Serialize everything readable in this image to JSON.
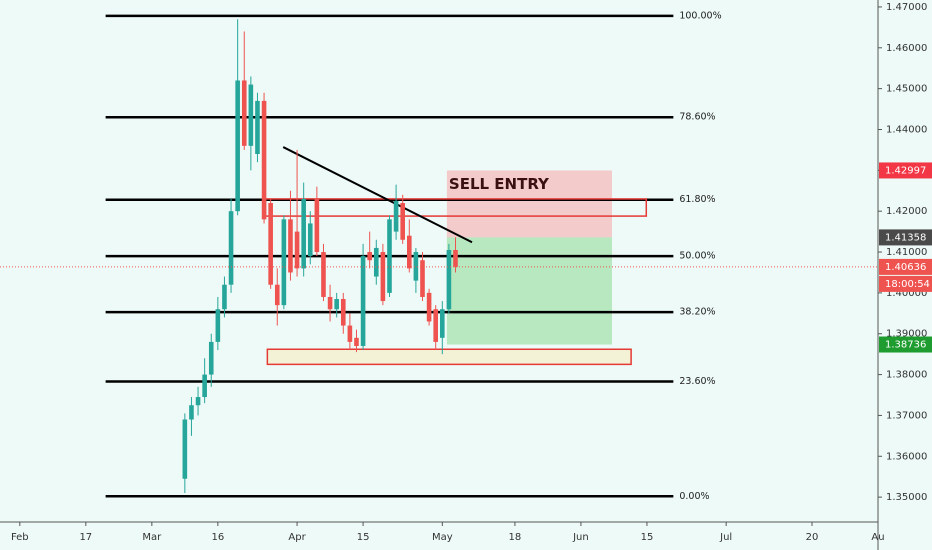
{
  "chart_data": {
    "type": "candlestick",
    "x": [
      25,
      26,
      27,
      28,
      29,
      30,
      31,
      32,
      33,
      34,
      35,
      36,
      37,
      38,
      39,
      40,
      41,
      42,
      43,
      44,
      45,
      46,
      47,
      48,
      49,
      50,
      51,
      52,
      53,
      54,
      55,
      56,
      57,
      58,
      59,
      60,
      61,
      62,
      63,
      64,
      65,
      66
    ],
    "open": [
      1.3545,
      1.369,
      1.3725,
      1.3745,
      1.38,
      1.388,
      1.396,
      1.402,
      1.42,
      1.452,
      1.436,
      1.434,
      1.447,
      1.422,
      1.402,
      1.397,
      1.418,
      1.415,
      1.406,
      1.409,
      1.423,
      1.41,
      1.399,
      1.396,
      1.3985,
      1.392,
      1.389,
      1.387,
      1.41,
      1.404,
      1.41,
      1.4,
      1.415,
      1.422,
      1.414,
      1.403,
      1.408,
      1.4,
      1.396,
      1.389,
      1.396,
      1.4105
    ],
    "high": [
      1.3705,
      1.3745,
      1.377,
      1.384,
      1.39,
      1.399,
      1.404,
      1.423,
      1.467,
      1.464,
      1.453,
      1.449,
      1.449,
      1.423,
      1.406,
      1.419,
      1.425,
      1.435,
      1.427,
      1.42,
      1.426,
      1.412,
      1.402,
      1.4,
      1.4,
      1.395,
      1.391,
      1.412,
      1.415,
      1.413,
      1.412,
      1.419,
      1.4265,
      1.424,
      1.418,
      1.411,
      1.41,
      1.401,
      1.397,
      1.398,
      1.412,
      1.4136
    ],
    "low": [
      1.351,
      1.365,
      1.37,
      1.373,
      1.377,
      1.386,
      1.394,
      1.4,
      1.419,
      1.435,
      1.43,
      1.432,
      1.417,
      1.401,
      1.392,
      1.396,
      1.403,
      1.404,
      1.404,
      1.407,
      1.409,
      1.398,
      1.393,
      1.394,
      1.39,
      1.386,
      1.3855,
      1.386,
      1.406,
      1.402,
      1.397,
      1.399,
      1.413,
      1.412,
      1.405,
      1.4,
      1.398,
      1.392,
      1.386,
      1.385,
      1.395,
      1.405
    ],
    "close": [
      1.369,
      1.3725,
      1.3745,
      1.38,
      1.388,
      1.396,
      1.402,
      1.42,
      1.452,
      1.436,
      1.451,
      1.447,
      1.418,
      1.402,
      1.397,
      1.418,
      1.405,
      1.406,
      1.423,
      1.417,
      1.41,
      1.399,
      1.396,
      1.3985,
      1.392,
      1.388,
      1.387,
      1.409,
      1.408,
      1.411,
      1.398,
      1.418,
      1.4225,
      1.413,
      1.406,
      1.41,
      1.399,
      1.393,
      1.388,
      1.396,
      1.4105,
      1.40636
    ],
    "up_color": "#26a69a",
    "down_color": "#ef5350",
    "xlim": [
      -3,
      130
    ],
    "xticks": [
      {
        "value": 0,
        "label": "Feb"
      },
      {
        "value": 10,
        "label": "17"
      },
      {
        "value": 20,
        "label": "Mar"
      },
      {
        "value": 30,
        "label": "16"
      },
      {
        "value": 42,
        "label": "Apr"
      },
      {
        "value": 52,
        "label": "15"
      },
      {
        "value": 64,
        "label": "May"
      },
      {
        "value": 75,
        "label": "18"
      },
      {
        "value": 85,
        "label": "Jun"
      },
      {
        "value": 95,
        "label": "15"
      },
      {
        "value": 107,
        "label": "Jul"
      },
      {
        "value": 120,
        "label": "20"
      },
      {
        "value": 130,
        "label": "Au"
      }
    ],
    "ylim": [
      1.3444,
      1.4717
    ],
    "yticks": [
      {
        "value": 1.47,
        "label": "1.47000"
      },
      {
        "value": 1.46,
        "label": "1.46000"
      },
      {
        "value": 1.45,
        "label": "1.45000"
      },
      {
        "value": 1.44,
        "label": "1.44000"
      },
      {
        "value": 1.43,
        "label": "1.43000"
      },
      {
        "value": 1.42,
        "label": "1.42000"
      },
      {
        "value": 1.41,
        "label": "1.41000"
      },
      {
        "value": 1.4,
        "label": "1.40000"
      },
      {
        "value": 1.39,
        "label": "1.39000"
      },
      {
        "value": 1.38,
        "label": "1.38000"
      },
      {
        "value": 1.37,
        "label": "1.37000"
      },
      {
        "value": 1.36,
        "label": "1.36000"
      },
      {
        "value": 1.35,
        "label": "1.35000"
      }
    ],
    "fib_from": 13,
    "fib_to": 99,
    "fib_levels": [
      {
        "label": "100.00%",
        "value": 1.4678
      },
      {
        "label": "78.60%",
        "value": 1.443
      },
      {
        "label": "61.80%",
        "value": 1.4228
      },
      {
        "label": "50.00%",
        "value": 1.409
      },
      {
        "label": "38.20%",
        "value": 1.3953
      },
      {
        "label": "23.60%",
        "value": 1.3783
      },
      {
        "label": "0.00%",
        "value": 1.3502
      }
    ],
    "zones": [
      {
        "from": 37.2,
        "to": 94.9,
        "top": 1.423,
        "bottom": 1.4188
      },
      {
        "from": 37.5,
        "to": 92.6,
        "top": 1.3862,
        "bottom": 1.3825
      }
    ],
    "trendline": {
      "x": [
        39.9,
        68.5
      ],
      "y": [
        1.4357,
        1.4124
      ]
    },
    "position": {
      "label": "SELL ENTRY",
      "entry": 1.41358,
      "stop": 1.42997,
      "target": 1.38736,
      "from": 64.7,
      "to": 89.7,
      "stop_color": "#f23645",
      "entry_color": "#4a4a4a",
      "target_color": "#1e9c2f"
    },
    "countdown": "18:00:54"
  }
}
